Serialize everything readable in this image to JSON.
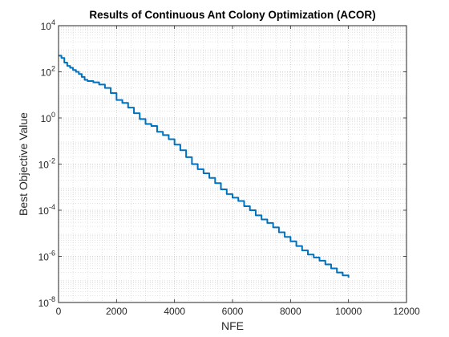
{
  "chart_data": {
    "type": "line",
    "title": "Results of Continuous Ant Colony Optimization (ACOR)",
    "xlabel": "NFE",
    "ylabel": "Best Objective Value",
    "xlim": [
      0,
      12000
    ],
    "ylim": [
      1e-08,
      10000
    ],
    "yscale": "log",
    "grid": true,
    "minor_grid": true,
    "box": true,
    "legend": "none",
    "x_ticks": [
      {
        "value": 0,
        "label": "0"
      },
      {
        "value": 2000,
        "label": "2000"
      },
      {
        "value": 4000,
        "label": "4000"
      },
      {
        "value": 6000,
        "label": "6000"
      },
      {
        "value": 8000,
        "label": "8000"
      },
      {
        "value": 10000,
        "label": "10000"
      },
      {
        "value": 12000,
        "label": "12000"
      }
    ],
    "y_ticks": [
      {
        "value": 1e-08,
        "base": "10",
        "exp": "-8"
      },
      {
        "value": 1e-06,
        "base": "10",
        "exp": "-6"
      },
      {
        "value": 0.0001,
        "base": "10",
        "exp": "-4"
      },
      {
        "value": 0.01,
        "base": "10",
        "exp": "-2"
      },
      {
        "value": 1,
        "base": "10",
        "exp": "0"
      },
      {
        "value": 100,
        "base": "10",
        "exp": "2"
      },
      {
        "value": 10000,
        "base": "10",
        "exp": "4"
      }
    ],
    "series": [
      {
        "color": "#0072BD",
        "x": [
          0,
          100,
          200,
          300,
          400,
          500,
          600,
          700,
          800,
          900,
          1000,
          1200,
          1400,
          1600,
          1800,
          2000,
          2200,
          2400,
          2600,
          2800,
          3000,
          3200,
          3400,
          3600,
          3800,
          4000,
          4200,
          4400,
          4600,
          4800,
          5000,
          5200,
          5400,
          5600,
          5800,
          6000,
          6200,
          6400,
          6600,
          6800,
          7000,
          7200,
          7400,
          7600,
          7800,
          8000,
          8200,
          8400,
          8600,
          8800,
          9000,
          9200,
          9400,
          9600,
          9800,
          10000
        ],
        "y": [
          500,
          400,
          250,
          180,
          150,
          120,
          100,
          80,
          60,
          45,
          40,
          35,
          28,
          20,
          12,
          6,
          4.5,
          2.8,
          1.6,
          0.9,
          0.55,
          0.45,
          0.25,
          0.18,
          0.12,
          0.07,
          0.04,
          0.02,
          0.01,
          0.006,
          0.004,
          0.0025,
          0.0015,
          0.0008,
          0.0005,
          0.00035,
          0.00025,
          0.00015,
          0.0001,
          6e-05,
          4e-05,
          2.8e-05,
          1.8e-05,
          1.1e-05,
          7e-06,
          4.5e-06,
          2.8e-06,
          1.8e-06,
          1.2e-06,
          9e-07,
          6.5e-07,
          4.5e-07,
          3e-07,
          2e-07,
          1.5e-07,
          1.2e-07
        ]
      }
    ]
  }
}
